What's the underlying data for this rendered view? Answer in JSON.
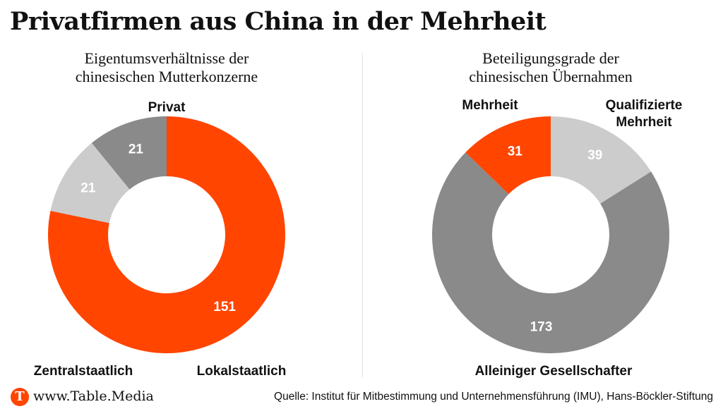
{
  "title": "Privatfirmen aus China in der Mehrheit",
  "footer": {
    "logo_letter": "T",
    "site": "www.Table.Media",
    "source": "Quelle: Institut für Mitbestimmung und Unternehmensführung (IMU), Hans-Böckler-Stiftung"
  },
  "colors": {
    "orange": "#ff4500",
    "dark_gray": "#8a8a8a",
    "light_gray": "#cccccc"
  },
  "chart_data": [
    {
      "type": "pie",
      "donut": true,
      "subtitle": [
        "Eigentumsverhältnisse der",
        "chinesischen Mutterkonzerne"
      ],
      "slices": [
        {
          "label": [
            "Privat"
          ],
          "value": 151,
          "color": "#ff4500"
        },
        {
          "label": [
            "Lokalstaatlich"
          ],
          "value": 21,
          "color": "#cccccc"
        },
        {
          "label": [
            "Zentralstaatlich"
          ],
          "value": 21,
          "color": "#8a8a8a"
        }
      ]
    },
    {
      "type": "pie",
      "donut": true,
      "subtitle": [
        "Beteiligungsgrade der",
        "chinesischen Übernahmen"
      ],
      "slices": [
        {
          "label": [
            "Qualifizierte",
            "Mehrheit"
          ],
          "value": 39,
          "color": "#cccccc"
        },
        {
          "label": [
            "Alleiniger Gesellschafter"
          ],
          "value": 173,
          "color": "#8a8a8a"
        },
        {
          "label": [
            "Mehrheit"
          ],
          "value": 31,
          "color": "#ff4500"
        }
      ]
    }
  ]
}
